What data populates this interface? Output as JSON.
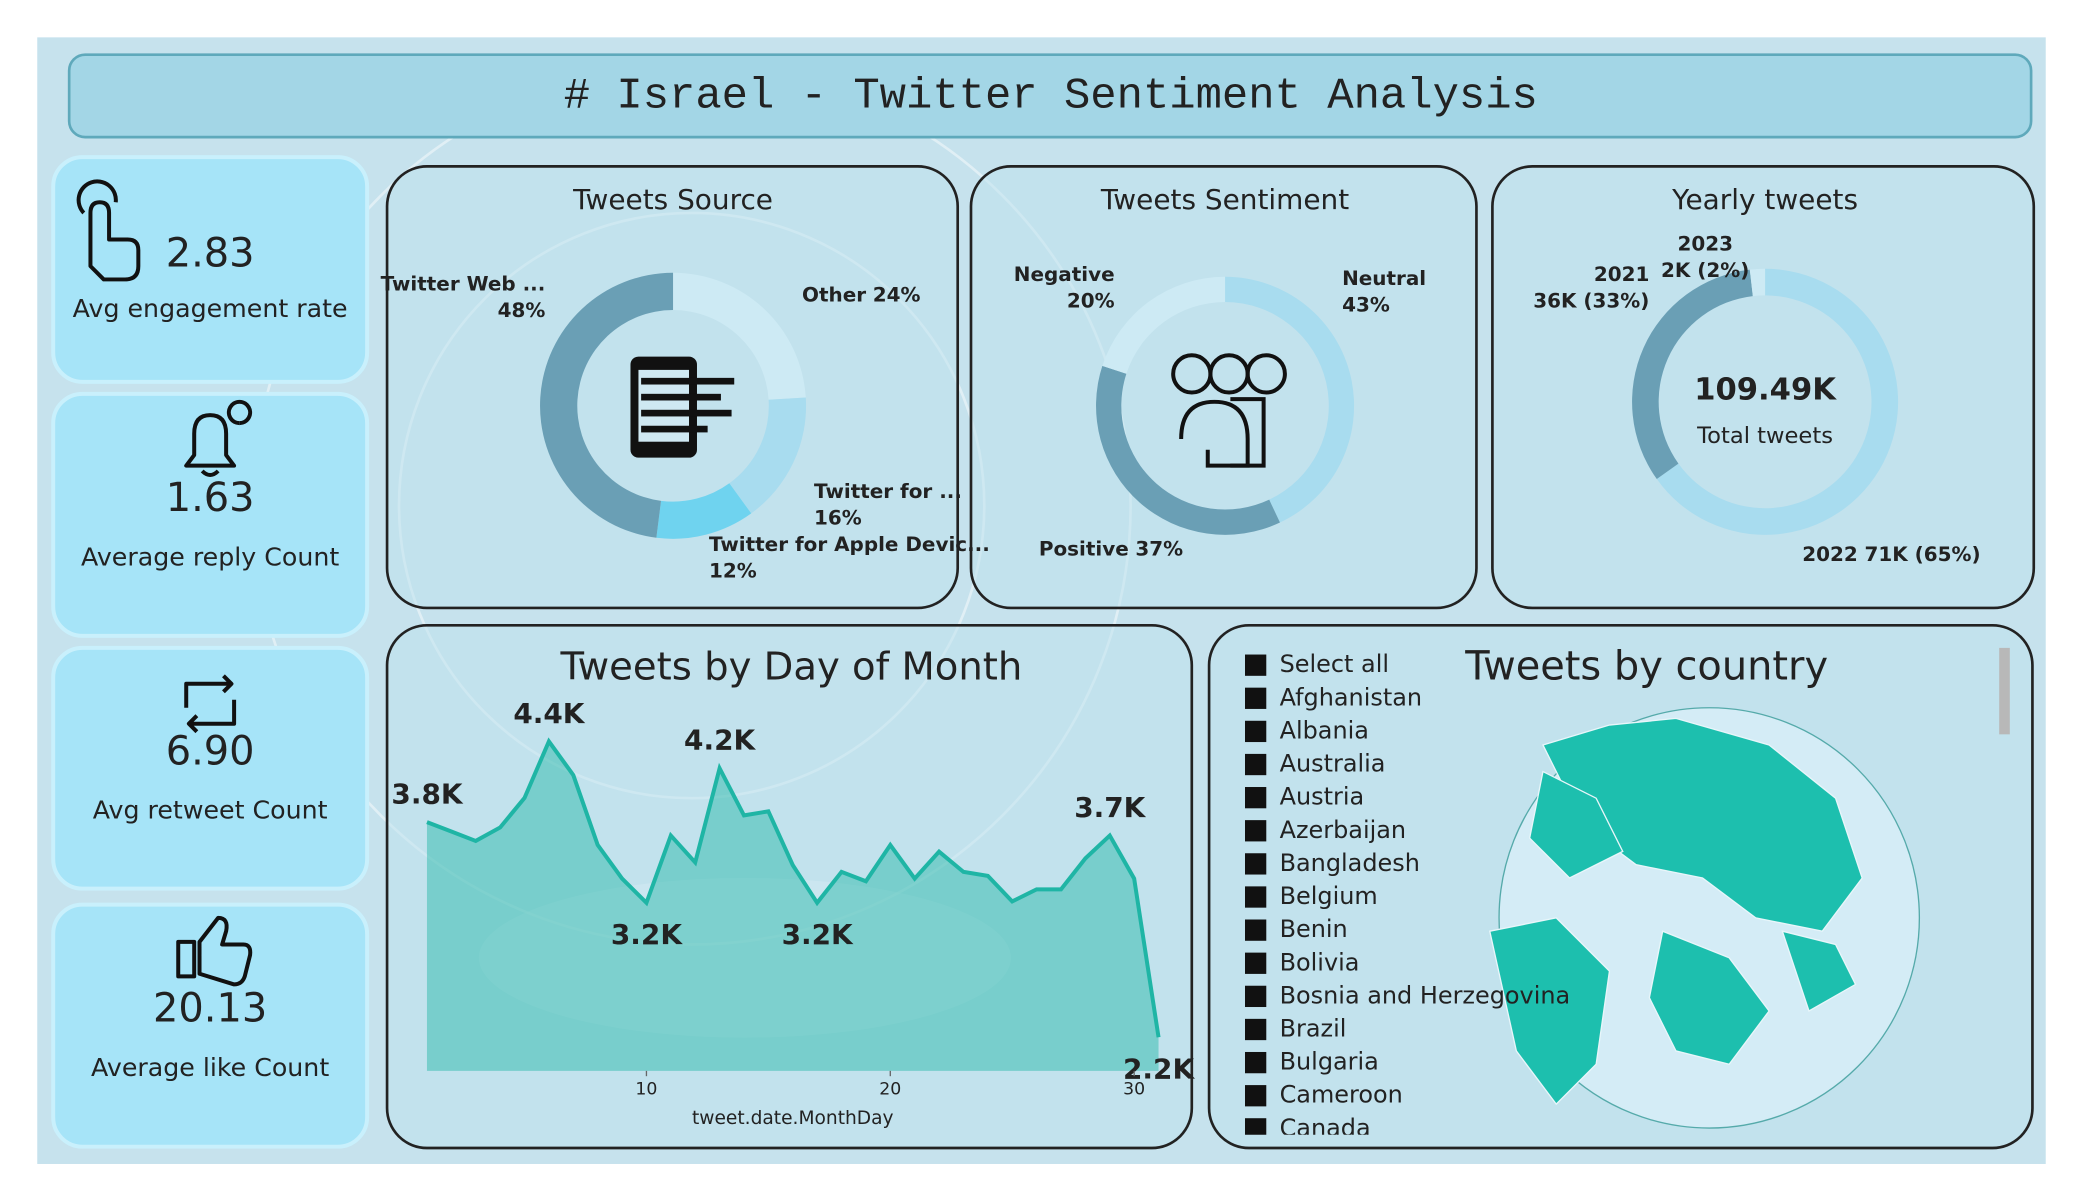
{
  "header": {
    "title": "# Israel - Twitter Sentiment Analysis"
  },
  "kpis": [
    {
      "value": "2.83",
      "label": "Avg engagement rate"
    },
    {
      "value": "1.63",
      "label": "Average reply Count"
    },
    {
      "value": "6.90",
      "label": "Avg retweet Count"
    },
    {
      "value": "20.13",
      "label": "Average like Count"
    }
  ],
  "chart_data": [
    {
      "type": "donut",
      "title": "Tweets Source",
      "categories": [
        "Other",
        "Twitter for ...",
        "Twitter for Apple Devic...",
        "Twitter Web ..."
      ],
      "values": [
        24,
        16,
        12,
        48
      ],
      "value_labels": [
        "24%",
        "16%",
        "12%",
        "48%"
      ],
      "colors": [
        "#cdeaf4",
        "#a8dcef",
        "#6fd3ef",
        "#6a9fb5"
      ]
    },
    {
      "type": "donut",
      "title": "Tweets Sentiment",
      "categories": [
        "Neutral",
        "Positive",
        "Negative"
      ],
      "values": [
        43,
        37,
        20
      ],
      "value_labels": [
        "43%",
        "37%",
        "20%"
      ],
      "colors": [
        "#a8dcef",
        "#6a9fb5",
        "#cdeaf4"
      ]
    },
    {
      "type": "donut",
      "title": "Yearly tweets",
      "categories": [
        "2022",
        "2021",
        "2023"
      ],
      "values": [
        71000,
        36000,
        2000
      ],
      "value_labels": [
        "71K (65%)",
        "36K (33%)",
        "2K (2%)"
      ],
      "colors": [
        "#a8dcef",
        "#6a9fb5",
        "#cdeaf4"
      ],
      "center_value": "109.49K",
      "center_label": "Total tweets"
    },
    {
      "type": "area",
      "title": "Tweets by Day of Month",
      "x_label": "tweet.date.MonthDay",
      "x": [
        1,
        2,
        3,
        4,
        5,
        6,
        7,
        8,
        9,
        10,
        11,
        12,
        13,
        14,
        15,
        16,
        17,
        18,
        19,
        20,
        21,
        22,
        23,
        24,
        25,
        26,
        27,
        28,
        29,
        30,
        31
      ],
      "values": [
        3800,
        3730,
        3660,
        3760,
        3980,
        4400,
        4150,
        3630,
        3380,
        3200,
        3700,
        3500,
        4200,
        3850,
        3880,
        3480,
        3200,
        3430,
        3360,
        3630,
        3380,
        3580,
        3430,
        3400,
        3210,
        3300,
        3300,
        3530,
        3700,
        3380,
        2200
      ],
      "value_labels": [
        "3.8K",
        null,
        null,
        null,
        null,
        "4.4K",
        null,
        null,
        null,
        "3.2K",
        null,
        null,
        "4.2K",
        null,
        null,
        null,
        "3.2K",
        null,
        null,
        null,
        null,
        null,
        null,
        null,
        null,
        null,
        null,
        null,
        "3.7K",
        null,
        "2.2K"
      ],
      "color": "#1fb5a5",
      "xlim": [
        1,
        31
      ],
      "xticks": [
        10,
        20,
        30
      ],
      "ylim": [
        1950,
        4700
      ]
    }
  ],
  "slicer": {
    "title": "Tweets by country",
    "items": [
      "Select all",
      "Afghanistan",
      "Albania",
      "Australia",
      "Austria",
      "Azerbaijan",
      "Bangladesh",
      "Belgium",
      "Benin",
      "Bolivia",
      "Bosnia and Herzegovina",
      "Brazil",
      "Bulgaria",
      "Cameroon",
      "Canada"
    ]
  }
}
